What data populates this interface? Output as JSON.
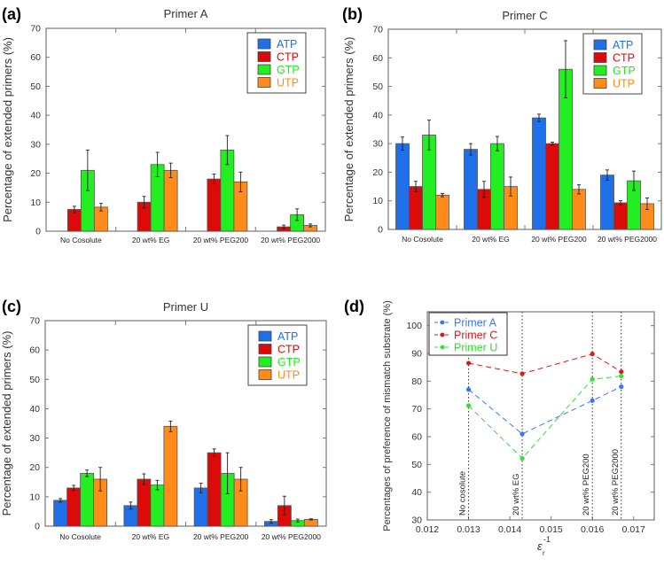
{
  "chart_data": [
    {
      "panel_label": "(a)",
      "type": "bar",
      "title": "Primer A",
      "xlabel": "",
      "ylabel": "Percentage of extended primers (%)",
      "ylim": [
        0,
        70
      ],
      "yticks": [
        0,
        10,
        20,
        30,
        40,
        50,
        60,
        70
      ],
      "categories": [
        "No Cosolute",
        "20 wt% EG",
        "20 wt% PEG200",
        "20 wt% PEG2000"
      ],
      "legend_position": "top-right",
      "series": [
        {
          "name": "ATP",
          "color": "#1f6fe8",
          "values": [
            0,
            0,
            0,
            0
          ],
          "errors": [
            0,
            0,
            0,
            0
          ]
        },
        {
          "name": "CTP",
          "color": "#dd0a0a",
          "values": [
            7.5,
            10,
            18,
            1.5
          ],
          "errors": [
            1.1,
            2,
            1.7,
            0.6
          ]
        },
        {
          "name": "GTP",
          "color": "#22ee22",
          "values": [
            21,
            23,
            28,
            5.7
          ],
          "errors": [
            7,
            4.2,
            5,
            2
          ]
        },
        {
          "name": "UTP",
          "color": "#ff8c1a",
          "values": [
            8.3,
            21,
            17,
            2
          ],
          "errors": [
            1.3,
            2.5,
            3.4,
            0.5
          ]
        }
      ]
    },
    {
      "panel_label": "(b)",
      "type": "bar",
      "title": "Primer C",
      "xlabel": "",
      "ylabel": "Percentage of extended primers (%)",
      "ylim": [
        0,
        70
      ],
      "yticks": [
        0,
        10,
        20,
        30,
        40,
        50,
        60,
        70
      ],
      "categories": [
        "No Cosolute",
        "20 wt% EG",
        "20 wt% PEG200",
        "20 wt% PEG2000"
      ],
      "legend_position": "top-right",
      "series": [
        {
          "name": "ATP",
          "color": "#1f6fe8",
          "values": [
            30,
            28,
            39,
            19
          ],
          "errors": [
            2.3,
            2,
            1.3,
            1.8
          ]
        },
        {
          "name": "CTP",
          "color": "#dd0a0a",
          "values": [
            15,
            14,
            30,
            9.3
          ],
          "errors": [
            1.8,
            2.8,
            0.5,
            0.8
          ]
        },
        {
          "name": "GTP",
          "color": "#22ee22",
          "values": [
            33,
            30,
            56,
            17
          ],
          "errors": [
            5.2,
            2.5,
            10,
            3.4
          ]
        },
        {
          "name": "UTP",
          "color": "#ff8c1a",
          "values": [
            12,
            15,
            14,
            9
          ],
          "errors": [
            0.6,
            3.3,
            1.6,
            2
          ]
        }
      ]
    },
    {
      "panel_label": "(c)",
      "type": "bar",
      "title": "Primer U",
      "xlabel": "",
      "ylabel": "Percentage of extended primers (%)",
      "ylim": [
        0,
        70
      ],
      "yticks": [
        0,
        10,
        20,
        30,
        40,
        50,
        60,
        70
      ],
      "categories": [
        "No Cosolute",
        "20 wt% EG",
        "20 wt% PEG200",
        "20 wt% PEG2000"
      ],
      "legend_position": "top-right",
      "series": [
        {
          "name": "ATP",
          "color": "#1f6fe8",
          "values": [
            8.8,
            7,
            13,
            1.6
          ],
          "errors": [
            0.6,
            1.2,
            1.6,
            0.6
          ]
        },
        {
          "name": "CTP",
          "color": "#dd0a0a",
          "values": [
            13,
            16,
            25,
            7
          ],
          "errors": [
            0.9,
            1.8,
            1.3,
            3.2
          ]
        },
        {
          "name": "GTP",
          "color": "#22ee22",
          "values": [
            18,
            14,
            18,
            1.9
          ],
          "errors": [
            1.1,
            1.6,
            7,
            0.5
          ]
        },
        {
          "name": "UTP",
          "color": "#ff8c1a",
          "values": [
            16,
            34,
            16,
            2.3
          ],
          "errors": [
            4,
            1.8,
            4,
            0.2
          ]
        }
      ]
    },
    {
      "panel_label": "(d)",
      "type": "line",
      "title": "",
      "xlabel": "ε",
      "xlabel_sub": "r",
      "xlabel_sup": "-1",
      "ylabel": "Percentages of preference of mismatch substrate (%)",
      "xlim": [
        0.012,
        0.0175
      ],
      "ylim": [
        30,
        105
      ],
      "xticks": [
        "0.012",
        "0.013",
        "0.014",
        "0.015",
        "0.016",
        "0.017"
      ],
      "yticks": [
        30,
        40,
        50,
        60,
        70,
        80,
        90,
        100
      ],
      "legend_position": "top-left",
      "x": [
        0.013,
        0.0143,
        0.016,
        0.0167
      ],
      "annotations": [
        "No cosolute",
        "20 wt% EG",
        "20 wt% PEG200",
        "20 wt% PEG2000"
      ],
      "series": [
        {
          "name": "Primer A",
          "color": "#3a78f0",
          "values": [
            77,
            61,
            73,
            78
          ]
        },
        {
          "name": "Primer C",
          "color": "#dd1a1a",
          "values": [
            86.5,
            82.7,
            89.8,
            83.4
          ]
        },
        {
          "name": "Primer U",
          "color": "#33e033",
          "values": [
            71.2,
            52.2,
            80.7,
            81.8
          ]
        }
      ]
    }
  ]
}
